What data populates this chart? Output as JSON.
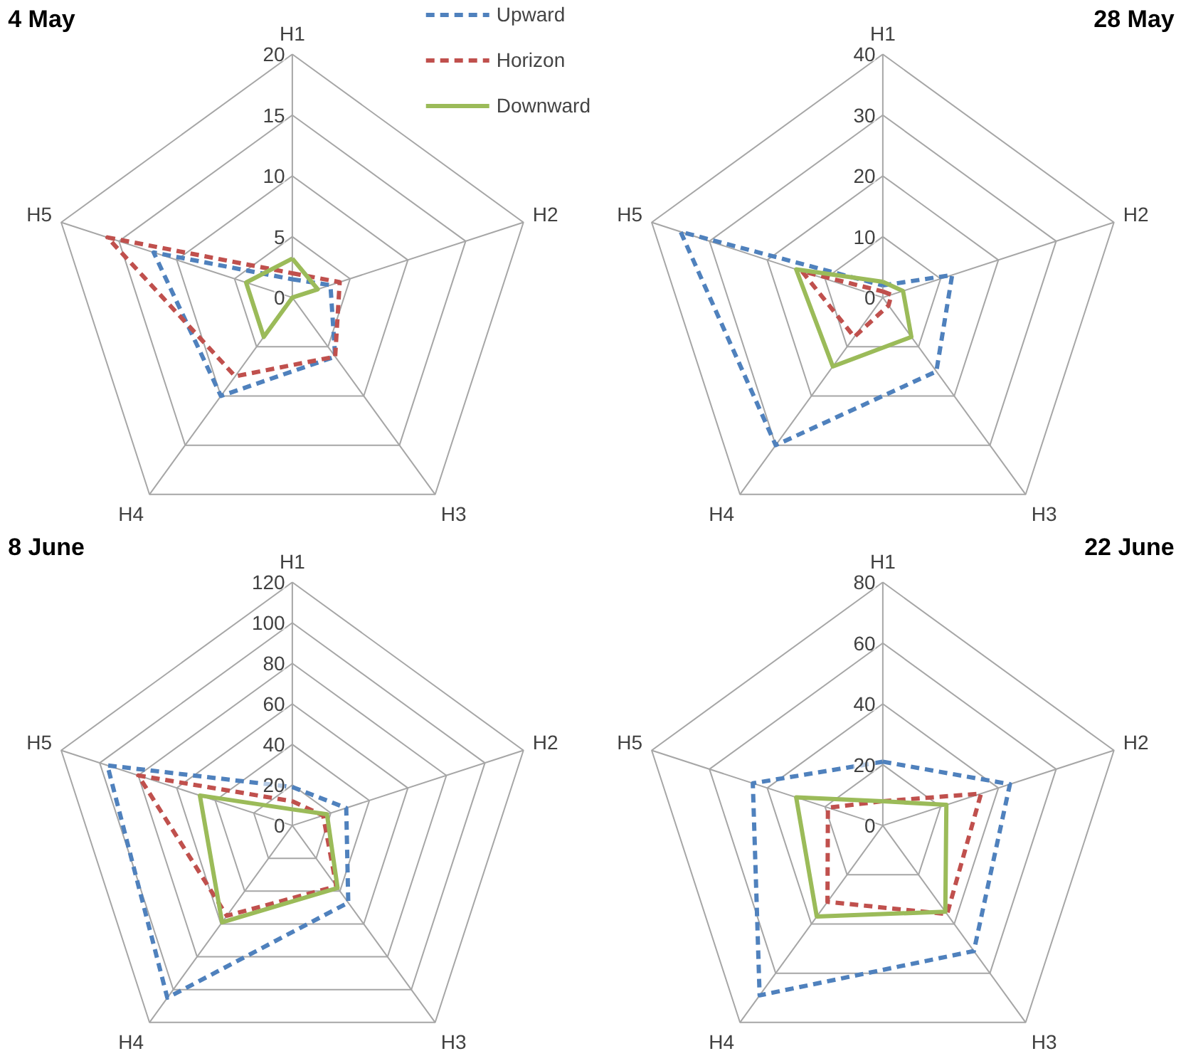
{
  "chart_data": [
    {
      "type": "radar",
      "title": "4 May",
      "categories": [
        "H1",
        "H2",
        "H3",
        "H4",
        "H5"
      ],
      "ylim": [
        0,
        20
      ],
      "yticks": [
        0,
        5,
        10,
        15,
        20
      ],
      "grid": true,
      "legend": "top right",
      "series": [
        {
          "name": "Upward",
          "color": "#4f81bd",
          "line_style": "dashed",
          "values": [
            1.5,
            3.3,
            6,
            10,
            12
          ]
        },
        {
          "name": "Horizon",
          "color": "#c0504d",
          "line_style": "dashed",
          "values": [
            2,
            4.1,
            6,
            8,
            16
          ]
        },
        {
          "name": "Downward",
          "color": "#9bbb59",
          "line_style": "solid",
          "values": [
            3.2,
            2.2,
            0,
            4,
            4
          ]
        }
      ]
    },
    {
      "type": "radar",
      "title": "28 May",
      "categories": [
        "H1",
        "H2",
        "H3",
        "H4",
        "H5"
      ],
      "ylim": [
        0,
        40
      ],
      "yticks": [
        0,
        10,
        20,
        30,
        40
      ],
      "grid": true,
      "series": [
        {
          "color": "#4f81bd",
          "line_style": "dashed",
          "values": [
            2,
            12,
            15,
            30,
            35
          ]
        },
        {
          "color": "#c0504d",
          "line_style": "dashed",
          "values": [
            1,
            1.5,
            1.6,
            8,
            14
          ]
        },
        {
          "color": "#9bbb59",
          "line_style": "solid",
          "values": [
            2.6,
            3.5,
            8,
            14,
            15
          ]
        }
      ]
    },
    {
      "type": "radar",
      "title": "8 June",
      "categories": [
        "H1",
        "H2",
        "H3",
        "H4",
        "H5"
      ],
      "ylim": [
        0,
        120
      ],
      "yticks": [
        0,
        20,
        40,
        60,
        80,
        100,
        120
      ],
      "grid": true,
      "series": [
        {
          "color": "#4f81bd",
          "line_style": "dashed",
          "values": [
            19,
            28,
            47,
            105,
            96
          ]
        },
        {
          "color": "#c0504d",
          "line_style": "dashed",
          "values": [
            12,
            16,
            37,
            55,
            80
          ]
        },
        {
          "color": "#9bbb59",
          "line_style": "solid",
          "values": [
            8,
            18,
            38,
            59,
            48
          ]
        }
      ]
    },
    {
      "type": "radar",
      "title": "22 June",
      "categories": [
        "H1",
        "H2",
        "H3",
        "H4",
        "H5"
      ],
      "ylim": [
        0,
        80
      ],
      "yticks": [
        0,
        20,
        40,
        60,
        80
      ],
      "grid": true,
      "series": [
        {
          "color": "#4f81bd",
          "line_style": "dashed",
          "values": [
            21,
            44,
            51,
            69,
            45
          ]
        },
        {
          "color": "#c0504d",
          "line_style": "dashed",
          "values": [
            8,
            34,
            36,
            31,
            19
          ]
        },
        {
          "color": "#9bbb59",
          "line_style": "solid",
          "values": [
            8,
            22,
            35,
            37,
            30
          ]
        }
      ]
    }
  ]
}
